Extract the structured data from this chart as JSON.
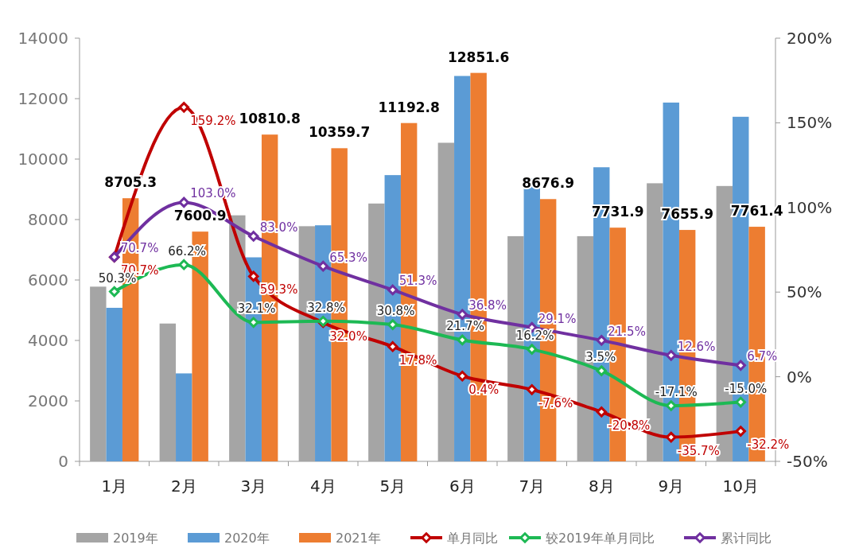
{
  "chart_data": {
    "type": "bar",
    "categories": [
      "1月",
      "2月",
      "3月",
      "4月",
      "5月",
      "6月",
      "7月",
      "8月",
      "9月",
      "10月"
    ],
    "ylim": [
      0,
      14000
    ],
    "yticks": [
      0,
      2000,
      4000,
      6000,
      8000,
      10000,
      12000,
      14000
    ],
    "y2lim": [
      -50,
      200
    ],
    "y2ticks": [
      {
        "value": -50,
        "label": "-50%"
      },
      {
        "value": 0,
        "label": "0%"
      },
      {
        "value": 50,
        "label": "50%"
      },
      {
        "value": 100,
        "label": "100%"
      },
      {
        "value": 150,
        "label": "150%"
      },
      {
        "value": 200,
        "label": "200%"
      }
    ],
    "legend": "bottom",
    "marker": "diamond",
    "grid": false,
    "series": [
      {
        "name": "2019年",
        "color": "#a5a5a5",
        "values": [
          5780,
          4560,
          8140,
          7780,
          8530,
          10540,
          7450,
          7450,
          9200,
          9110
        ]
      },
      {
        "name": "2020年",
        "color": "#5b9bd5",
        "values": [
          5080,
          2910,
          6750,
          7810,
          9470,
          12750,
          9360,
          9730,
          11870,
          11400
        ]
      },
      {
        "name": "2021年",
        "color": "#ed7d31",
        "values": [
          8705.3,
          7600.9,
          10810.8,
          10359.7,
          11192.8,
          12851.6,
          8676.9,
          7731.9,
          7655.9,
          7761.4
        ],
        "value_labels": [
          "8705.3",
          "7600.9",
          "10810.8",
          "10359.7",
          "11192.8",
          "12851.6",
          "8676.9",
          "7731.9",
          "7655.9",
          "7761.4"
        ]
      },
      {
        "name": "单月同比",
        "type": "line",
        "axis": "y2",
        "color": "#c00000",
        "values": [
          70.7,
          159.2,
          59.3,
          32.0,
          17.8,
          0.4,
          -7.6,
          -20.8,
          -35.7,
          -32.2
        ],
        "value_labels": [
          "70.7%",
          "159.2%",
          "59.3%",
          "32.0%",
          "17.8%",
          "0.4%",
          "-7.6%",
          "-20.8%",
          "-35.7%",
          "-32.2%"
        ]
      },
      {
        "name": "较2019年单月同比",
        "type": "line",
        "axis": "y2",
        "color": "#1db954",
        "values": [
          50.3,
          66.2,
          32.1,
          32.8,
          30.8,
          21.7,
          16.2,
          3.5,
          -17.1,
          -15.0
        ],
        "value_labels": [
          "50.3%",
          "66.2%",
          "32.1%",
          "32.8%",
          "30.8%",
          "21.7%",
          "16.2%",
          "3.5%",
          "-17.1%",
          "-15.0%"
        ]
      },
      {
        "name": "累计同比",
        "type": "line",
        "axis": "y2",
        "color": "#7030a0",
        "values": [
          70.7,
          103.0,
          83.0,
          65.3,
          51.3,
          36.8,
          29.1,
          21.5,
          12.6,
          6.7
        ],
        "value_labels": [
          "70.7%",
          "103.0%",
          "83.0%",
          "65.3%",
          "51.3%",
          "36.8%",
          "29.1%",
          "21.5%",
          "12.6%",
          "6.7%"
        ]
      }
    ]
  }
}
